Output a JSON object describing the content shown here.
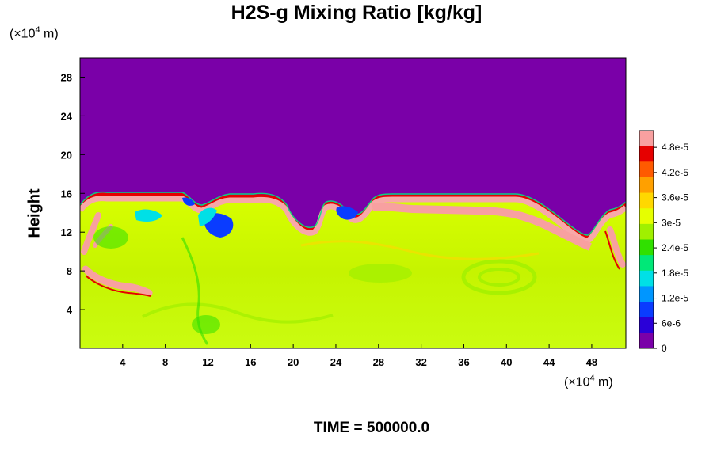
{
  "chart_data": {
    "type": "heatmap",
    "title": "H2S-g Mixing Ratio [kg/kg]",
    "xlabel": "",
    "ylabel": "Height",
    "x_unit": {
      "prefix": "(×10",
      "exp": "4",
      "suffix": " m)"
    },
    "y_unit": {
      "prefix": "(×10",
      "exp": "4",
      "suffix": " m)"
    },
    "xlim": [
      0,
      51.2
    ],
    "ylim": [
      0,
      30
    ],
    "x_ticks": [
      "4",
      "8",
      "12",
      "16",
      "20",
      "24",
      "28",
      "32",
      "36",
      "40",
      "44",
      "48"
    ],
    "y_ticks": [
      "4",
      "8",
      "12",
      "16",
      "20",
      "24",
      "28"
    ],
    "colorbar": {
      "range": [
        0,
        5.2e-05
      ],
      "tick_values": [
        0,
        6e-06,
        1.2e-05,
        1.8e-05,
        2.4e-05,
        3e-05,
        3.6e-05,
        4.2e-05,
        4.8e-05
      ],
      "tick_labels": [
        "0",
        "6e-6",
        "1.2e-5",
        "1.8e-5",
        "2.4e-5",
        "3e-5",
        "3.6e-5",
        "4.2e-5",
        "4.8e-5"
      ],
      "colors": [
        "#7a00a8",
        "#2a00d8",
        "#0a3cff",
        "#0096ff",
        "#00e0e6",
        "#00e878",
        "#30e000",
        "#a0f000",
        "#e6ff00",
        "#ffd800",
        "#ffa000",
        "#ff5a00",
        "#e60000",
        "#f8a0a0"
      ]
    },
    "field_summary": {
      "top_layer": {
        "value": 0,
        "from_height": 15.5,
        "to_height": 30
      },
      "bulk_layer": {
        "value": 3.3e-05,
        "from_height": 0,
        "to_height": 15.5
      },
      "boundary_max": 5.2e-05
    }
  },
  "footer": {
    "time": "TIME = 500000.0"
  }
}
